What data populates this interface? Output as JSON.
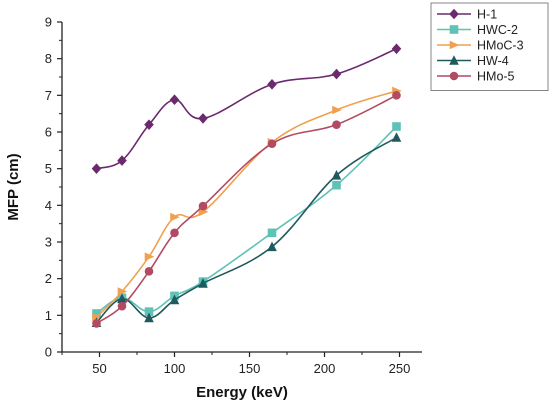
{
  "chart_data": {
    "type": "line",
    "title": "",
    "xlabel": "Energy (keV)",
    "ylabel": "MFP (cm)",
    "xlim": [
      25,
      265
    ],
    "ylim": [
      0,
      9
    ],
    "xticks": [
      50,
      100,
      150,
      200,
      250
    ],
    "yticks": [
      0,
      1,
      2,
      3,
      4,
      5,
      6,
      7,
      8,
      9
    ],
    "grid": false,
    "legend_position": "top-right",
    "x": [
      48,
      65,
      83,
      100,
      119,
      165,
      208,
      248
    ],
    "series": [
      {
        "name": "H-1",
        "color": "#6b2a6e",
        "marker": "diamond",
        "values": [
          5.0,
          5.22,
          6.2,
          6.88,
          6.37,
          7.3,
          7.58,
          8.27
        ]
      },
      {
        "name": "HWC-2",
        "color": "#5ec2b6",
        "marker": "square",
        "values": [
          1.05,
          1.48,
          1.1,
          1.53,
          1.92,
          3.25,
          4.55,
          6.15
        ]
      },
      {
        "name": "HMoC-3",
        "color": "#f0a050",
        "marker": "triangle-right",
        "values": [
          0.95,
          1.65,
          2.6,
          3.68,
          3.82,
          5.72,
          6.6,
          7.12
        ]
      },
      {
        "name": "HW-4",
        "color": "#1f5a5e",
        "marker": "triangle-up",
        "values": [
          0.8,
          1.45,
          0.93,
          1.42,
          1.87,
          2.87,
          4.82,
          5.85
        ]
      },
      {
        "name": "HMo-5",
        "color": "#b24a62",
        "marker": "circle",
        "values": [
          0.78,
          1.25,
          2.2,
          3.25,
          3.98,
          5.68,
          6.2,
          7.0
        ]
      }
    ]
  }
}
